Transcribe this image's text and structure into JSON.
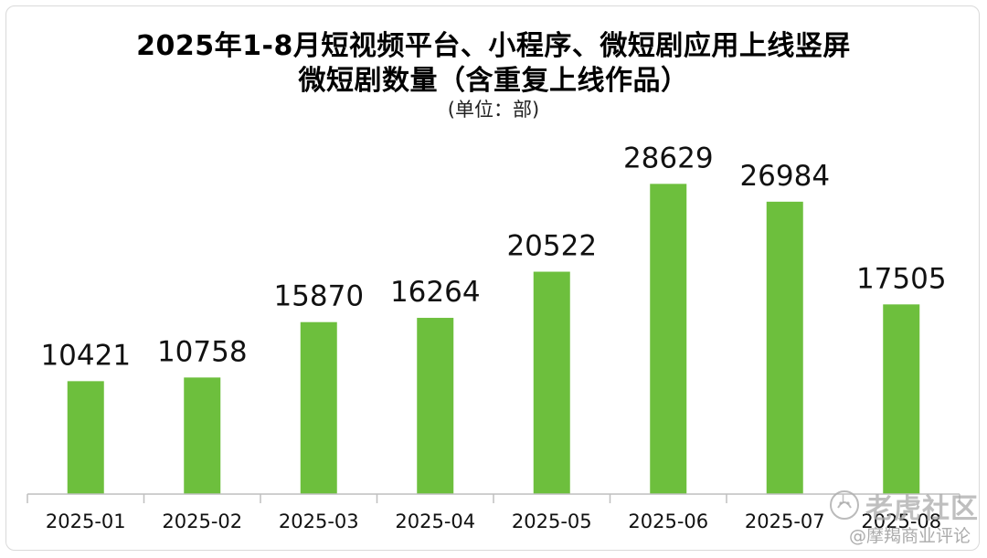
{
  "chart_data": {
    "type": "bar",
    "title_line1": "2025年1-8月短视频平台、小程序、微短剧应用上线竖屏",
    "title_line2": "微短剧数量（含重复上线作品）",
    "unit": "(单位：部)",
    "categories": [
      "2025-01",
      "2025-02",
      "2025-03",
      "2025-04",
      "2025-05",
      "2025-06",
      "2025-07",
      "2025-08"
    ],
    "values": [
      10421,
      10758,
      15870,
      16264,
      20522,
      28629,
      26984,
      17505
    ],
    "data_labels": [
      "10421",
      "10758",
      "15870",
      "16264",
      "20522",
      "28629",
      "26984",
      "17505"
    ],
    "ylim": [
      0,
      35000
    ],
    "grid": false,
    "legend": "none",
    "bar_color": "#6dbf3d"
  },
  "watermark": {
    "main": "老虎社区",
    "sub": "@摩羯商业评论",
    "icon": "tiger-community-icon"
  }
}
